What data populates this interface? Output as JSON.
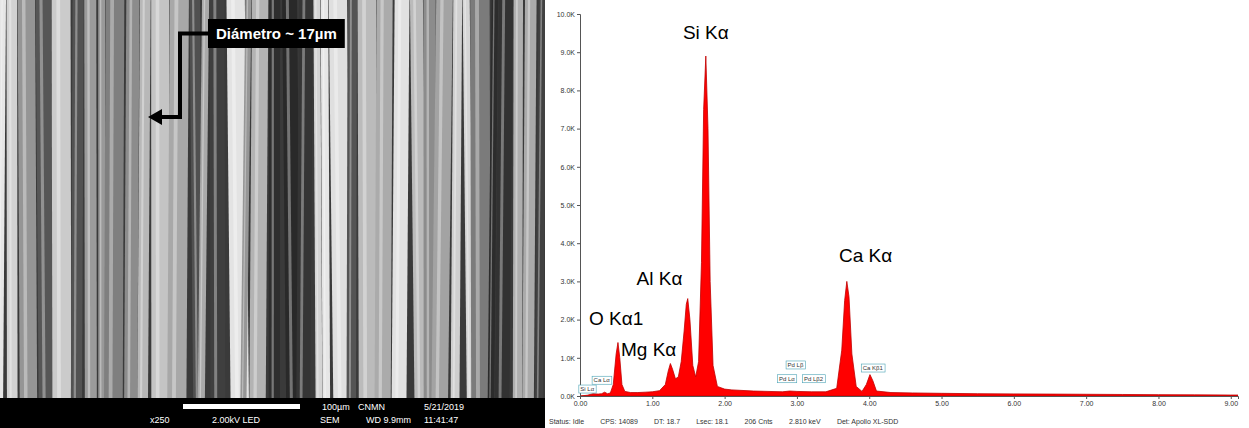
{
  "sem_image": {
    "annotation": "Diámetro ~ 17µm",
    "header_line": [
      "100µm",
      "CNMN",
      "5/21/2019"
    ],
    "footer": [
      "x250",
      "2.00kV LED",
      "SEM",
      "WD 9.9mm",
      "11:41:47"
    ]
  },
  "chart_data": {
    "type": "area",
    "color": "#ff0000",
    "x": [
      0,
      0.1,
      0.18,
      0.25,
      0.3,
      0.34,
      0.38,
      0.42,
      0.46,
      0.5,
      0.525,
      0.55,
      0.58,
      0.62,
      0.7,
      0.8,
      0.9,
      1.0,
      1.1,
      1.18,
      1.22,
      1.25,
      1.28,
      1.32,
      1.36,
      1.4,
      1.44,
      1.47,
      1.49,
      1.52,
      1.56,
      1.6,
      1.64,
      1.68,
      1.71,
      1.74,
      1.77,
      1.8,
      1.84,
      1.9,
      2.0,
      2.1,
      2.2,
      2.4,
      2.6,
      2.8,
      2.9,
      3.0,
      3.2,
      3.4,
      3.55,
      3.62,
      3.66,
      3.69,
      3.72,
      3.76,
      3.82,
      3.9,
      3.96,
      4.01,
      4.05,
      4.1,
      4.3,
      4.6,
      5.0,
      5.5,
      6.0,
      6.5,
      7.0,
      7.5,
      8.0,
      8.5,
      9.0,
      9.1
    ],
    "values": [
      0,
      20,
      60,
      50,
      60,
      100,
      60,
      80,
      300,
      1100,
      1400,
      1000,
      300,
      120,
      90,
      90,
      100,
      110,
      140,
      300,
      650,
      850,
      700,
      450,
      500,
      900,
      1700,
      2400,
      2550,
      2000,
      800,
      500,
      900,
      3500,
      7500,
      8900,
      7000,
      3000,
      800,
      250,
      180,
      160,
      150,
      130,
      120,
      110,
      130,
      120,
      110,
      110,
      200,
      1200,
      2500,
      3000,
      2600,
      1100,
      250,
      120,
      300,
      560,
      400,
      130,
      90,
      80,
      70,
      60,
      55,
      50,
      45,
      40,
      35,
      30,
      25,
      25
    ],
    "xlim": [
      0,
      9.1
    ],
    "xticks": [
      {
        "value": 0,
        "label": "0.00"
      },
      {
        "value": 1,
        "label": "1.00"
      },
      {
        "value": 2,
        "label": "2.00"
      },
      {
        "value": 3,
        "label": "3.00"
      },
      {
        "value": 4,
        "label": "4.00"
      },
      {
        "value": 5,
        "label": "5.00"
      },
      {
        "value": 6,
        "label": "6.00"
      },
      {
        "value": 7,
        "label": "7.00"
      },
      {
        "value": 8,
        "label": "8.00"
      },
      {
        "value": 9,
        "label": "9.00"
      }
    ],
    "ylim": [
      0,
      10000
    ],
    "yticks": [
      {
        "value": 0,
        "label": "0.0K"
      },
      {
        "value": 1000,
        "label": "1.0K"
      },
      {
        "value": 2000,
        "label": "2.0K"
      },
      {
        "value": 3000,
        "label": "3.0K"
      },
      {
        "value": 4000,
        "label": "4.0K"
      },
      {
        "value": 5000,
        "label": "5.0K"
      },
      {
        "value": 6000,
        "label": "6.0K"
      },
      {
        "value": 7000,
        "label": "7.0K"
      },
      {
        "value": 8000,
        "label": "8.0K"
      },
      {
        "value": 9000,
        "label": "9.0K"
      },
      {
        "value": 10000,
        "label": "10.0K"
      }
    ],
    "grid": false,
    "annotations": [
      {
        "text": "Si Kα",
        "x": 1.74,
        "y": 9350
      },
      {
        "text": "Al Kα",
        "x": 1.1,
        "y": 2900
      },
      {
        "text": "O Kα1",
        "x": 0.5,
        "y": 1850
      },
      {
        "text": "Mg Kα",
        "x": 0.95,
        "y": 1050
      },
      {
        "text": "Ca Kα",
        "x": 3.95,
        "y": 3500
      }
    ],
    "minor_labels": [
      {
        "text": "Si Lα",
        "x": 0.1,
        "y": 130
      },
      {
        "text": "Ca Lα",
        "x": 0.3,
        "y": 360
      },
      {
        "text": "Pd Lα",
        "x": 2.86,
        "y": 400
      },
      {
        "text": "Pd Lβ",
        "x": 2.98,
        "y": 760
      },
      {
        "text": "Pd Lβ2",
        "x": 3.23,
        "y": 400
      },
      {
        "text": "Ca Kβ1",
        "x": 4.05,
        "y": 680
      }
    ],
    "status_bar": [
      "Status: Idle",
      "CPS: 14089",
      "DT: 18.7",
      "Lsec: 18.1",
      "206 Cnts",
      "2.810 keV",
      "Det: Apollo XL-SDD"
    ]
  }
}
